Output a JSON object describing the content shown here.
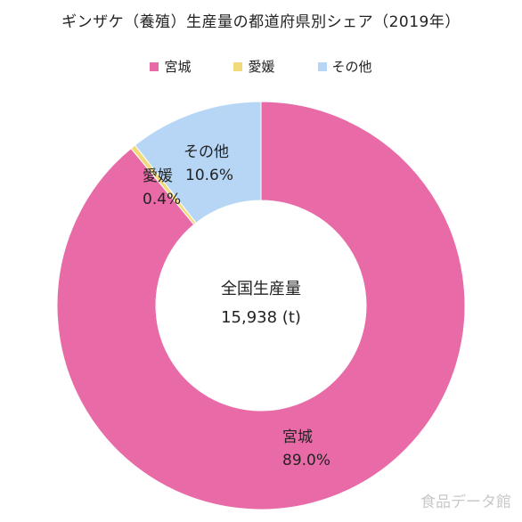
{
  "chart_data": {
    "type": "pie",
    "title": "ギンザケ（養殖）生産量の都道府県別シェア（2019年）",
    "legend_position": "top",
    "series": [
      {
        "name": "宮城",
        "value": 89.0,
        "label": "89.0%",
        "color": "#E86BA7"
      },
      {
        "name": "愛媛",
        "value": 0.4,
        "label": "0.4%",
        "color": "#F2D97A"
      },
      {
        "name": "その他",
        "value": 10.6,
        "label": "10.6%",
        "color": "#B7D6F6"
      }
    ],
    "center_label": {
      "line1": "全国生産量",
      "line2": "15,938 (t)"
    }
  },
  "watermark": "食品データ館"
}
